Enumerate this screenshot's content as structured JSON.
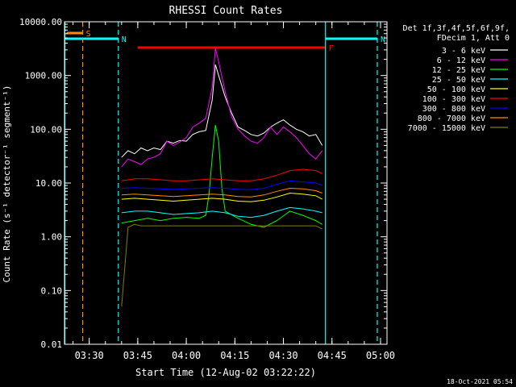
{
  "chart_data": {
    "type": "line",
    "title": "RHESSI Count Rates",
    "xlabel": "Start Time (12-Aug-02 03:22:22)",
    "ylabel": "Count Rate (s⁻¹ detector⁻¹ segment⁻¹)",
    "y_scale": "log",
    "ylim": [
      0.01,
      10000
    ],
    "xlim": [
      "03:22:22",
      "05:02:00"
    ],
    "x_tick_labels": [
      "03:30",
      "03:45",
      "04:00",
      "04:15",
      "04:30",
      "04:45",
      "05:00"
    ],
    "y_tick_labels": [
      "0.01",
      "0.10",
      "1.00",
      "10.00",
      "100.00",
      "1000.00",
      "10000.00"
    ],
    "y_ticks": [
      0.01,
      0.1,
      1,
      10,
      100,
      1000,
      10000
    ],
    "x_ticks": [
      "03:30",
      "03:45",
      "04:00",
      "04:15",
      "04:30",
      "04:45",
      "05:00"
    ],
    "legend_header": [
      "Det 1f,3f,4f,5f,6f,9f,",
      "FDecim 1, Att 0"
    ],
    "legend_position": "right",
    "timestamp": "18-Oct-2021 05:54",
    "flags": [
      {
        "label": "S",
        "color": "#ff8c00",
        "start": "03:23",
        "end": "03:28"
      },
      {
        "label": "N",
        "color": "#00ffff",
        "start": "03:22:22",
        "end": "03:39"
      },
      {
        "label": "N",
        "color": "#00ffff",
        "start": "04:43",
        "end": "04:59"
      },
      {
        "label": "F",
        "color": "#ff0000",
        "start": "03:45",
        "end": "04:43"
      }
    ],
    "vertical_markers": [
      {
        "time": "03:22:30",
        "color": "#00ffff",
        "style": "solid"
      },
      {
        "time": "03:28",
        "color": "#ff8c00",
        "style": "dashed"
      },
      {
        "time": "03:39",
        "color": "#00ffff",
        "style": "dashed"
      },
      {
        "time": "04:43",
        "color": "#00ffff",
        "style": "solid"
      },
      {
        "time": "04:59",
        "color": "#00ffff",
        "style": "dashed"
      }
    ],
    "series": [
      {
        "name": "3 - 6 keV",
        "color": "#ffffff",
        "x": [
          "03:40",
          "03:42",
          "03:44",
          "03:46",
          "03:48",
          "03:50",
          "03:52",
          "03:54",
          "03:56",
          "03:58",
          "04:00",
          "04:02",
          "04:04",
          "04:06",
          "04:08",
          "04:09",
          "04:10",
          "04:12",
          "04:14",
          "04:16",
          "04:18",
          "04:20",
          "04:22",
          "04:24",
          "04:26",
          "04:28",
          "04:30",
          "04:32",
          "04:34",
          "04:36",
          "04:38",
          "04:40",
          "04:42"
        ],
        "y": [
          30,
          40,
          35,
          45,
          40,
          45,
          42,
          60,
          55,
          62,
          60,
          80,
          90,
          95,
          350,
          1600,
          1000,
          400,
          200,
          110,
          95,
          80,
          75,
          85,
          110,
          130,
          150,
          120,
          100,
          90,
          75,
          80,
          50
        ]
      },
      {
        "name": "6 - 12 keV",
        "color": "#ff00ff",
        "x": [
          "03:40",
          "03:42",
          "03:44",
          "03:46",
          "03:48",
          "03:50",
          "03:52",
          "03:54",
          "03:56",
          "03:58",
          "04:00",
          "04:02",
          "04:04",
          "04:06",
          "04:08",
          "04:09",
          "04:10",
          "04:12",
          "04:14",
          "04:16",
          "04:18",
          "04:20",
          "04:22",
          "04:24",
          "04:26",
          "04:28",
          "04:30",
          "04:32",
          "04:34",
          "04:36",
          "04:38",
          "04:40",
          "04:42"
        ],
        "y": [
          20,
          28,
          25,
          22,
          28,
          30,
          35,
          60,
          50,
          58,
          70,
          110,
          130,
          160,
          600,
          3200,
          1800,
          500,
          170,
          100,
          75,
          60,
          55,
          70,
          110,
          80,
          110,
          90,
          70,
          50,
          35,
          28,
          40
        ]
      },
      {
        "name": "12 - 25 keV",
        "color": "#00ff00",
        "x": [
          "03:40",
          "03:44",
          "03:48",
          "03:52",
          "03:56",
          "04:00",
          "04:04",
          "04:06",
          "04:07",
          "04:08",
          "04:09",
          "04:10",
          "04:11",
          "04:12",
          "04:16",
          "04:20",
          "04:24",
          "04:28",
          "04:32",
          "04:36",
          "04:40",
          "04:42"
        ],
        "y": [
          1.8,
          2.0,
          2.2,
          2.0,
          2.2,
          2.3,
          2.2,
          2.5,
          6,
          30,
          120,
          60,
          8,
          3,
          2.2,
          1.7,
          1.5,
          2.0,
          3.0,
          2.5,
          2.0,
          1.7
        ]
      },
      {
        "name": "25 - 50 keV",
        "color": "#00ffff",
        "x": [
          "03:40",
          "03:44",
          "03:48",
          "03:52",
          "03:56",
          "04:00",
          "04:04",
          "04:08",
          "04:12",
          "04:16",
          "04:20",
          "04:24",
          "04:28",
          "04:32",
          "04:36",
          "04:40",
          "04:42"
        ],
        "y": [
          2.8,
          3.0,
          3.0,
          2.8,
          2.6,
          2.7,
          2.8,
          3.0,
          2.8,
          2.4,
          2.3,
          2.5,
          3.0,
          3.5,
          3.3,
          3.0,
          2.8
        ]
      },
      {
        "name": "50 - 100 keV",
        "color": "#ffff00",
        "x": [
          "03:40",
          "03:44",
          "03:48",
          "03:52",
          "03:56",
          "04:00",
          "04:04",
          "04:08",
          "04:12",
          "04:16",
          "04:20",
          "04:24",
          "04:28",
          "04:32",
          "04:36",
          "04:40",
          "04:42"
        ],
        "y": [
          5.0,
          5.2,
          5.0,
          4.8,
          4.6,
          4.8,
          5.0,
          5.2,
          5.0,
          4.6,
          4.5,
          4.8,
          5.5,
          6.5,
          6.2,
          5.8,
          5.0
        ]
      },
      {
        "name": "100 - 300 keV",
        "color": "#ff0000",
        "x": [
          "03:40",
          "03:44",
          "03:48",
          "03:52",
          "03:56",
          "04:00",
          "04:04",
          "04:08",
          "04:12",
          "04:16",
          "04:20",
          "04:24",
          "04:28",
          "04:32",
          "04:36",
          "04:40",
          "04:42"
        ],
        "y": [
          11,
          12,
          12,
          11.5,
          11,
          11,
          11.5,
          12,
          11.5,
          11,
          11,
          12,
          14,
          17,
          18,
          17,
          15
        ]
      },
      {
        "name": "300 - 800 keV",
        "color": "#0000ff",
        "x": [
          "03:40",
          "03:44",
          "03:48",
          "03:52",
          "03:56",
          "04:00",
          "04:04",
          "04:08",
          "04:12",
          "04:16",
          "04:20",
          "04:24",
          "04:28",
          "04:32",
          "04:36",
          "04:40",
          "04:42"
        ],
        "y": [
          8.0,
          8.2,
          8.0,
          7.8,
          7.6,
          7.8,
          8.0,
          8.2,
          8.0,
          7.6,
          7.5,
          8.0,
          9.5,
          11,
          10.5,
          10,
          9
        ]
      },
      {
        "name": "800 - 7000 keV",
        "color": "#ff8c00",
        "x": [
          "03:40",
          "03:44",
          "03:48",
          "03:52",
          "03:56",
          "04:00",
          "04:04",
          "04:08",
          "04:12",
          "04:16",
          "04:20",
          "04:24",
          "04:28",
          "04:32",
          "04:36",
          "04:40",
          "04:42"
        ],
        "y": [
          6.0,
          6.2,
          6.0,
          5.8,
          5.6,
          5.8,
          6.0,
          6.2,
          6.0,
          5.6,
          5.5,
          6.0,
          7.0,
          8.0,
          7.8,
          7.2,
          6.5
        ]
      },
      {
        "name": "7000 - 15000 keV",
        "color": "#808000",
        "x": [
          "03:40",
          "03:42",
          "03:44",
          "03:46",
          "04:40",
          "04:41",
          "04:42"
        ],
        "y": [
          0.05,
          1.5,
          1.7,
          1.6,
          1.6,
          1.5,
          1.4
        ]
      }
    ]
  }
}
